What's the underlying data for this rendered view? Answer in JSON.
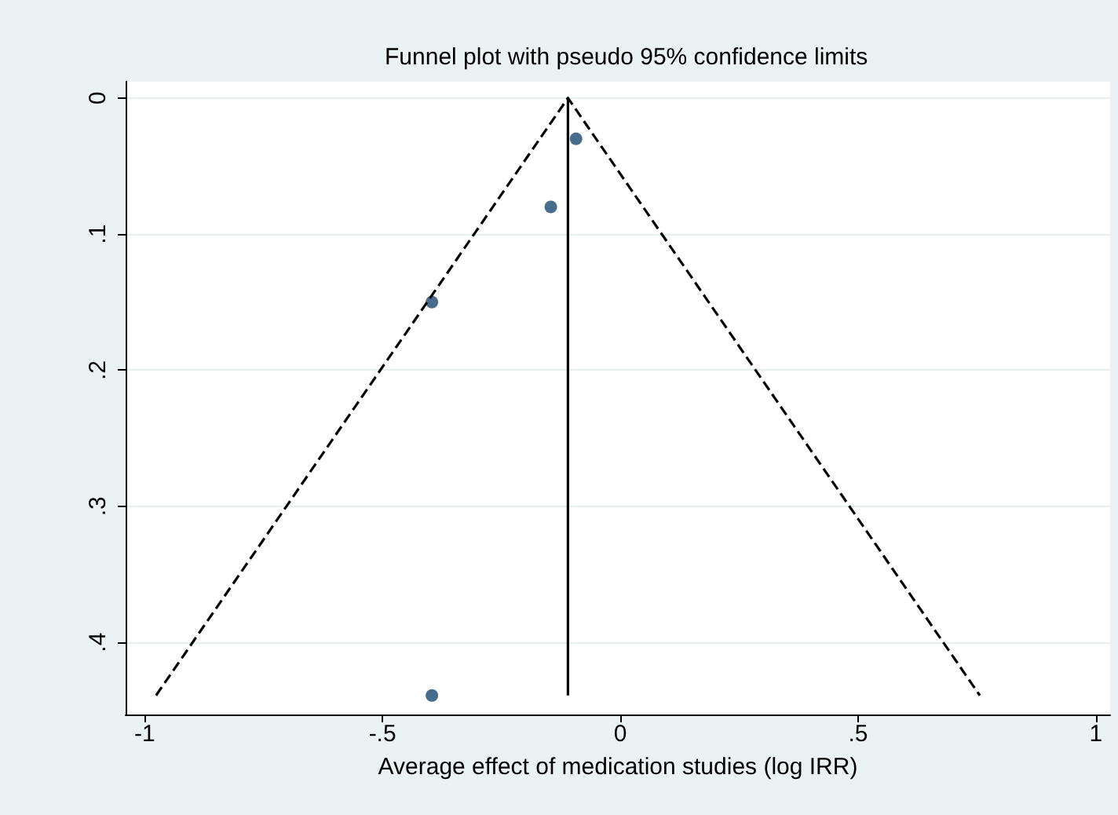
{
  "chart_data": {
    "type": "scatter",
    "title": "Funnel plot with pseudo 95% confidence limits",
    "xlabel": "Average effect of medication studies (log IRR)",
    "series": [
      {
        "color": "#1a476f",
        "marker": "circle",
        "x": [
          -0.093,
          -0.146,
          -0.396,
          -0.396
        ],
        "values": [
          0.03,
          0.08,
          0.15,
          0.439
        ]
      },
      {
        "type": "line",
        "color": "#000000",
        "marker": "none",
        "line_style": "dashed",
        "x": [
          -0.976,
          -0.11,
          0.756
        ],
        "values": [
          0.439,
          0,
          0.439
        ]
      },
      {
        "type": "line",
        "color": "#000000",
        "marker": "none",
        "line_style": "solid",
        "x": [
          -0.11,
          -0.11
        ],
        "values": [
          0,
          0.439
        ]
      }
    ],
    "xlim": [
      -1.04,
      1.03
    ],
    "ylim": [
      0.453,
      -0.012
    ],
    "xticks": [
      -1,
      {
        "value": -0.5,
        "label": "-.5"
      },
      0,
      {
        "value": 0.5,
        "label": ".5"
      },
      1
    ],
    "yticks": [
      0,
      {
        "value": 0.1,
        "label": ".1"
      },
      {
        "value": 0.2,
        "label": ".2"
      },
      {
        "value": 0.3,
        "label": ".3"
      },
      {
        "value": 0.4,
        "label": ".4"
      }
    ],
    "grid": "y"
  }
}
